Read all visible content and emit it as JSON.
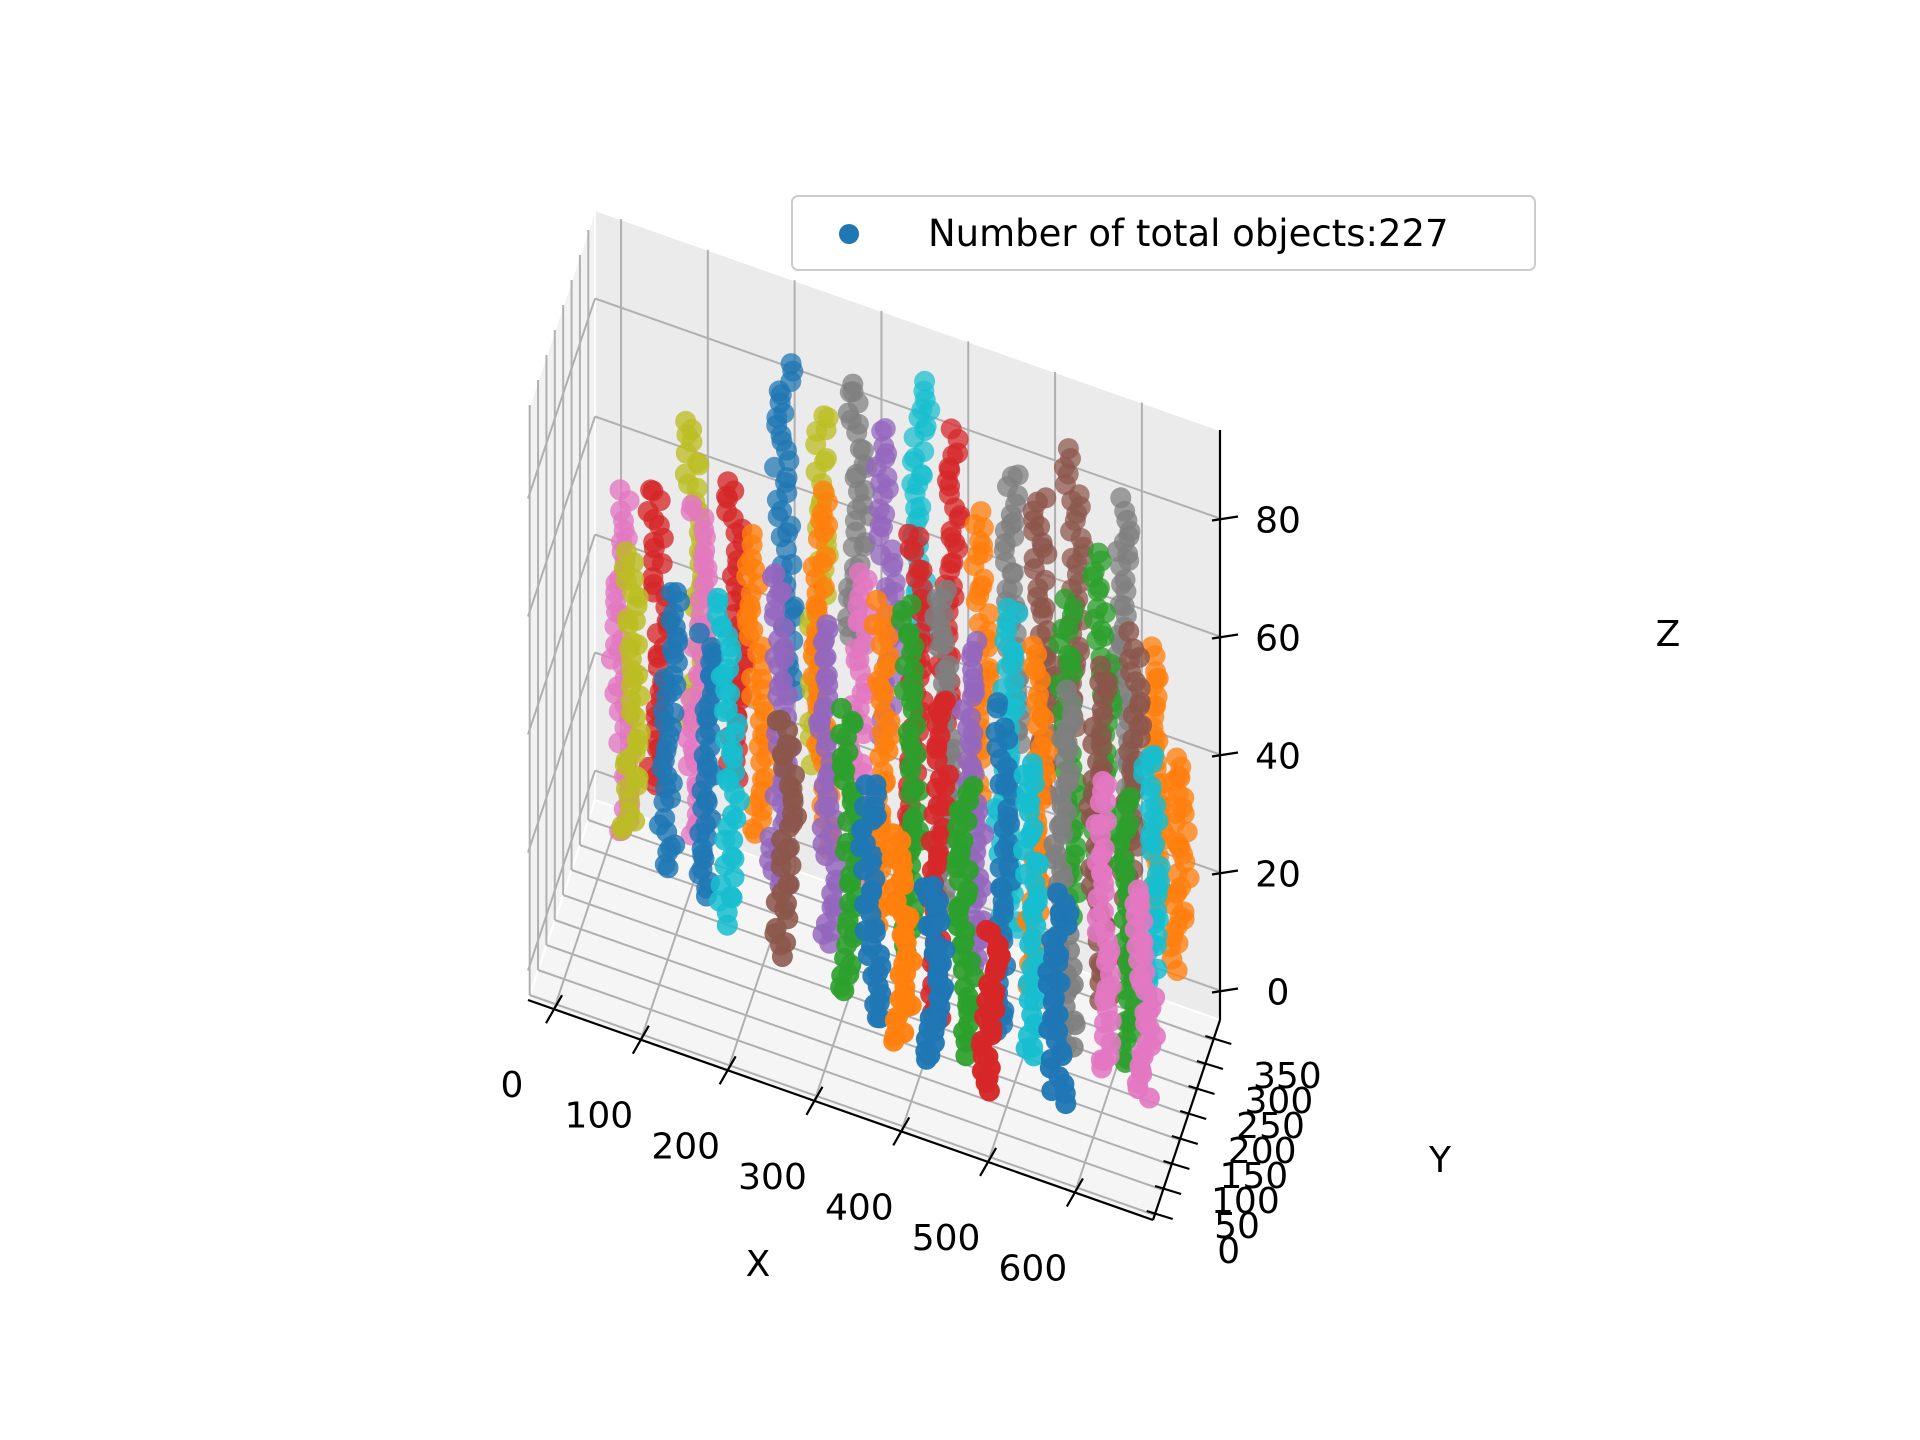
{
  "chart_data": {
    "type": "scatter",
    "projection": "3d",
    "xlabel": "X",
    "ylabel": "Y",
    "zlabel": "Z",
    "xlim": [
      -30,
      690
    ],
    "ylim": [
      -10,
      390
    ],
    "zlim": [
      -5,
      95
    ],
    "x_ticks": [
      "0",
      "100",
      "200",
      "300",
      "400",
      "500",
      "600"
    ],
    "y_ticks": [
      "0",
      "50",
      "100",
      "150",
      "200",
      "250",
      "300",
      "350"
    ],
    "z_ticks": [
      "0",
      "20",
      "40",
      "60",
      "80"
    ],
    "grid": true,
    "legend": {
      "placement": "upper-center",
      "entries": [
        "Number of total objects:227"
      ]
    },
    "total_objects": 227,
    "marker": "circle",
    "colors": [
      "#1f77b4",
      "#ff7f0e",
      "#2ca02c",
      "#d62728",
      "#9467bd",
      "#8c564b",
      "#e377c2",
      "#7f7f7f",
      "#bcbd22",
      "#17becf"
    ],
    "pane_color": "#f2f2f2",
    "grid_color": "#b0b0b0",
    "tracks": [
      {
        "x": 20,
        "y": 290,
        "z": [
          0,
          58
        ],
        "color": "#e377c2"
      },
      {
        "x": 40,
        "y": 250,
        "z": [
          5,
          52
        ],
        "color": "#bcbd22"
      },
      {
        "x": 60,
        "y": 300,
        "z": [
          10,
          60
        ],
        "color": "#d62728"
      },
      {
        "x": 80,
        "y": 260,
        "z": [
          0,
          48
        ],
        "color": "#1f77b4"
      },
      {
        "x": 100,
        "y": 320,
        "z": [
          20,
          72
        ],
        "color": "#bcbd22"
      },
      {
        "x": 110,
        "y": 280,
        "z": [
          5,
          62
        ],
        "color": "#e377c2"
      },
      {
        "x": 130,
        "y": 230,
        "z": [
          0,
          45
        ],
        "color": "#1f77b4"
      },
      {
        "x": 150,
        "y": 300,
        "z": [
          15,
          66
        ],
        "color": "#d62728"
      },
      {
        "x": 160,
        "y": 200,
        "z": [
          0,
          55
        ],
        "color": "#17becf"
      },
      {
        "x": 180,
        "y": 270,
        "z": [
          10,
          60
        ],
        "color": "#ff7f0e"
      },
      {
        "x": 200,
        "y": 340,
        "z": [
          30,
          85
        ],
        "color": "#1f77b4"
      },
      {
        "x": 210,
        "y": 250,
        "z": [
          5,
          58
        ],
        "color": "#9467bd"
      },
      {
        "x": 230,
        "y": 180,
        "z": [
          0,
          40
        ],
        "color": "#8c564b"
      },
      {
        "x": 240,
        "y": 330,
        "z": [
          20,
          80
        ],
        "color": "#bcbd22"
      },
      {
        "x": 250,
        "y": 290,
        "z": [
          10,
          70
        ],
        "color": "#ff7f0e"
      },
      {
        "x": 270,
        "y": 220,
        "z": [
          0,
          55
        ],
        "color": "#9467bd"
      },
      {
        "x": 280,
        "y": 350,
        "z": [
          40,
          85
        ],
        "color": "#7f7f7f"
      },
      {
        "x": 300,
        "y": 260,
        "z": [
          10,
          62
        ],
        "color": "#e377c2"
      },
      {
        "x": 310,
        "y": 150,
        "z": [
          0,
          48
        ],
        "color": "#2ca02c"
      },
      {
        "x": 320,
        "y": 320,
        "z": [
          30,
          82
        ],
        "color": "#9467bd"
      },
      {
        "x": 330,
        "y": 230,
        "z": [
          5,
          60
        ],
        "color": "#ff7f0e"
      },
      {
        "x": 340,
        "y": 120,
        "z": [
          0,
          40
        ],
        "color": "#1f77b4"
      },
      {
        "x": 350,
        "y": 360,
        "z": [
          45,
          88
        ],
        "color": "#17becf"
      },
      {
        "x": 360,
        "y": 280,
        "z": [
          15,
          70
        ],
        "color": "#d62728"
      },
      {
        "x": 370,
        "y": 200,
        "z": [
          5,
          65
        ],
        "color": "#2ca02c"
      },
      {
        "x": 380,
        "y": 100,
        "z": [
          0,
          35
        ],
        "color": "#ff7f0e"
      },
      {
        "x": 390,
        "y": 330,
        "z": [
          35,
          84
        ],
        "color": "#d62728"
      },
      {
        "x": 400,
        "y": 250,
        "z": [
          10,
          65
        ],
        "color": "#7f7f7f"
      },
      {
        "x": 410,
        "y": 160,
        "z": [
          0,
          55
        ],
        "color": "#d62728"
      },
      {
        "x": 420,
        "y": 80,
        "z": [
          0,
          30
        ],
        "color": "#1f77b4"
      },
      {
        "x": 430,
        "y": 300,
        "z": [
          25,
          75
        ],
        "color": "#ff7f0e"
      },
      {
        "x": 440,
        "y": 220,
        "z": [
          5,
          60
        ],
        "color": "#9467bd"
      },
      {
        "x": 450,
        "y": 120,
        "z": [
          0,
          45
        ],
        "color": "#2ca02c"
      },
      {
        "x": 460,
        "y": 340,
        "z": [
          35,
          80
        ],
        "color": "#7f7f7f"
      },
      {
        "x": 470,
        "y": 260,
        "z": [
          10,
          65
        ],
        "color": "#17becf"
      },
      {
        "x": 480,
        "y": 180,
        "z": [
          0,
          55
        ],
        "color": "#1f77b4"
      },
      {
        "x": 490,
        "y": 60,
        "z": [
          0,
          28
        ],
        "color": "#d62728"
      },
      {
        "x": 500,
        "y": 320,
        "z": [
          30,
          80
        ],
        "color": "#8c564b"
      },
      {
        "x": 510,
        "y": 230,
        "z": [
          5,
          62
        ],
        "color": "#ff7f0e"
      },
      {
        "x": 520,
        "y": 150,
        "z": [
          0,
          50
        ],
        "color": "#17becf"
      },
      {
        "x": 530,
        "y": 350,
        "z": [
          40,
          86
        ],
        "color": "#8c564b"
      },
      {
        "x": 540,
        "y": 270,
        "z": [
          15,
          68
        ],
        "color": "#2ca02c"
      },
      {
        "x": 550,
        "y": 190,
        "z": [
          0,
          60
        ],
        "color": "#7f7f7f"
      },
      {
        "x": 560,
        "y": 90,
        "z": [
          0,
          35
        ],
        "color": "#1f77b4"
      },
      {
        "x": 570,
        "y": 300,
        "z": [
          20,
          75
        ],
        "color": "#2ca02c"
      },
      {
        "x": 580,
        "y": 240,
        "z": [
          5,
          62
        ],
        "color": "#8c564b"
      },
      {
        "x": 590,
        "y": 340,
        "z": [
          30,
          82
        ],
        "color": "#7f7f7f"
      },
      {
        "x": 600,
        "y": 170,
        "z": [
          0,
          50
        ],
        "color": "#e377c2"
      },
      {
        "x": 610,
        "y": 280,
        "z": [
          10,
          65
        ],
        "color": "#8c564b"
      },
      {
        "x": 620,
        "y": 200,
        "z": [
          0,
          45
        ],
        "color": "#2ca02c"
      },
      {
        "x": 630,
        "y": 320,
        "z": [
          15,
          60
        ],
        "color": "#ff7f0e"
      },
      {
        "x": 640,
        "y": 250,
        "z": [
          5,
          50
        ],
        "color": "#17becf"
      },
      {
        "x": 650,
        "y": 150,
        "z": [
          0,
          35
        ],
        "color": "#e377c2"
      },
      {
        "x": 660,
        "y": 300,
        "z": [
          10,
          45
        ],
        "color": "#ff7f0e"
      }
    ]
  }
}
